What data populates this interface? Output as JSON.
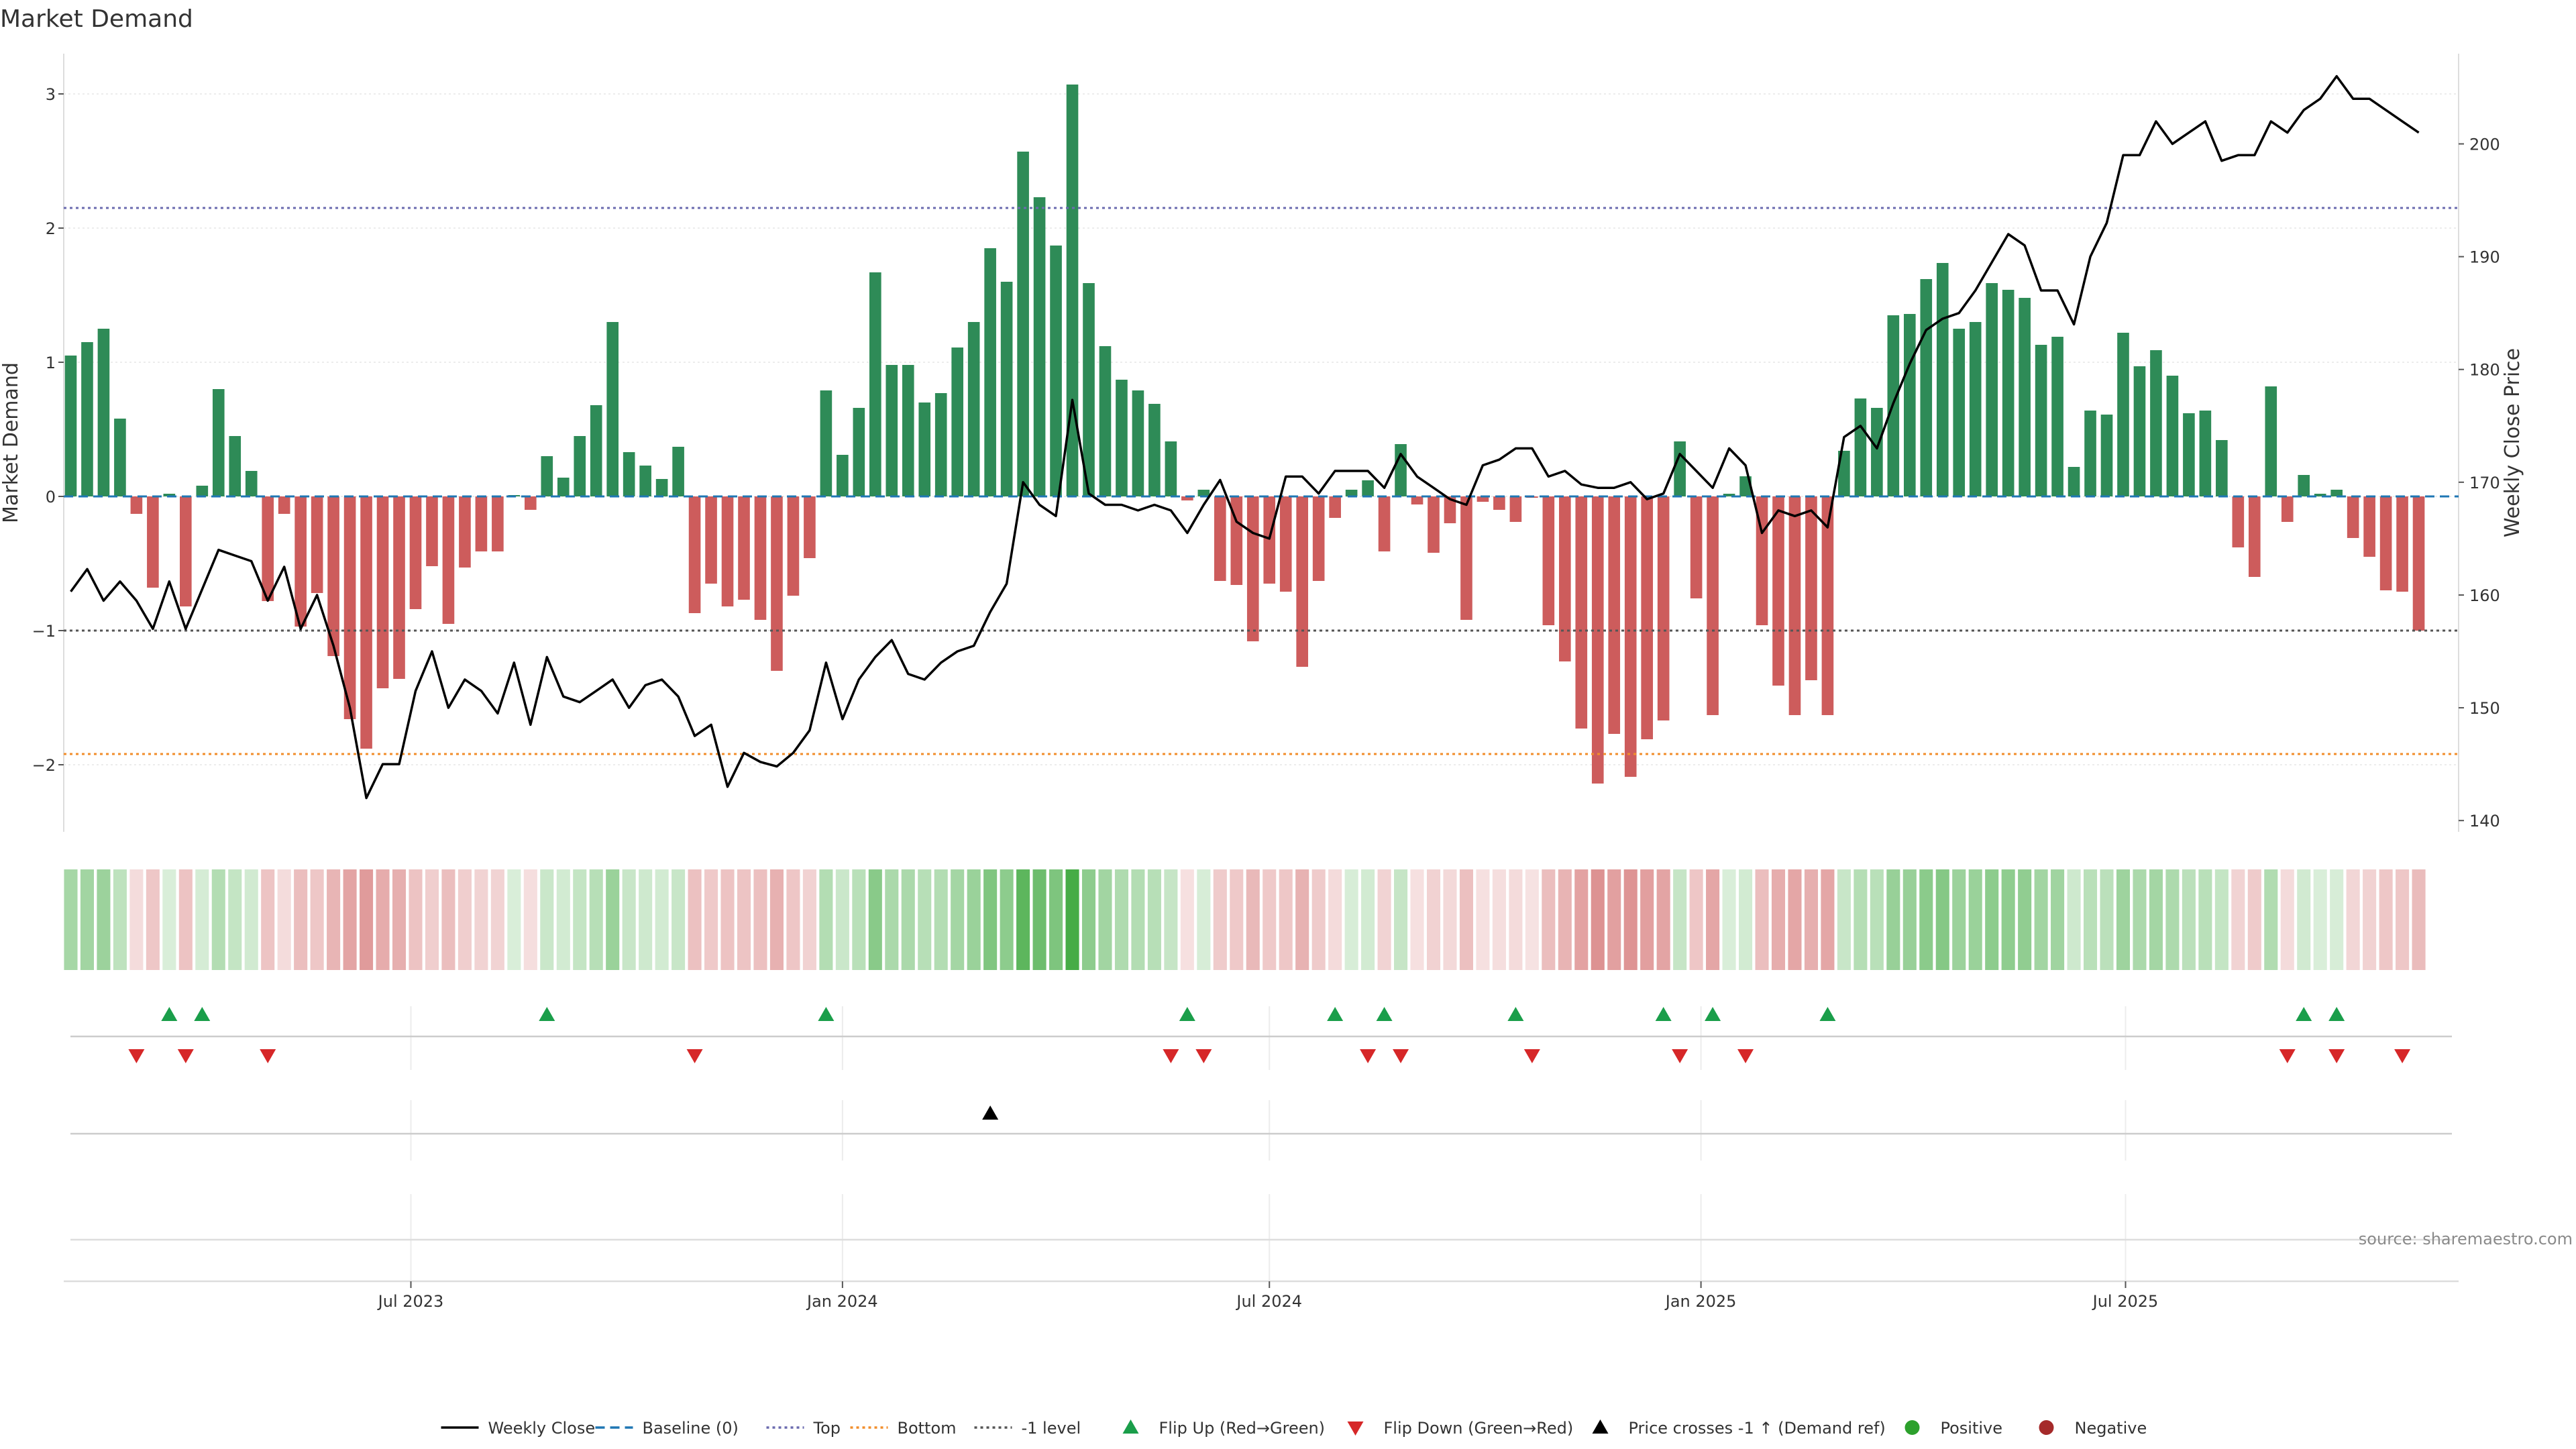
{
  "chart_data": {
    "type": "bar",
    "title": "Market Demand",
    "ylabel": "Market Demand",
    "y2label": "Weekly Close Price",
    "ylim": [
      -2.5,
      3.3
    ],
    "y2lim": [
      139,
      208
    ],
    "yticks": [
      -2,
      -1,
      0,
      1,
      2,
      3
    ],
    "yticklabels": [
      "−2",
      "−1",
      "0",
      "1",
      "2",
      "3"
    ],
    "y2ticks": [
      140,
      150,
      160,
      170,
      180,
      190,
      200
    ],
    "yticks_grid": true,
    "levels": {
      "top": 2.15,
      "bottom": -1.92,
      "minus_one": -1
    },
    "x_start": "2023-02-06",
    "x_step_days": 7,
    "xlim": [
      "2023-02-03",
      "2025-11-20"
    ],
    "xticks": [
      {
        "date": "2023-07-01",
        "label": "Jul 2023"
      },
      {
        "date": "2024-01-01",
        "label": "Jan 2024"
      },
      {
        "date": "2024-07-01",
        "label": "Jul 2024"
      },
      {
        "date": "2025-01-01",
        "label": "Jan 2025"
      },
      {
        "date": "2025-07-01",
        "label": "Jul 2025"
      }
    ],
    "colors": {
      "positive": "#2e8b57",
      "negative": "#cd5c5c",
      "price": "#000000",
      "top": "#6b6baf",
      "bottom": "#f28e2b",
      "minus_one": "#555555",
      "baseline": "#1f77b4",
      "flip_up": "#1a9e4a",
      "flip_down": "#d62728",
      "cross": "#000000",
      "pos_dot": "#2ca02c",
      "neg_dot": "#a52a2a"
    },
    "series": [
      {
        "name": "Market Demand",
        "values": [
          1.05,
          1.15,
          1.25,
          0.58,
          -0.13,
          -0.68,
          0.02,
          -0.82,
          0.08,
          0.8,
          0.45,
          0.19,
          -0.78,
          -0.13,
          -0.97,
          -0.72,
          -1.19,
          -1.66,
          -1.88,
          -1.43,
          -1.36,
          -0.84,
          -0.52,
          -0.95,
          -0.53,
          -0.41,
          -0.41,
          0.01,
          -0.1,
          0.3,
          0.14,
          0.45,
          0.68,
          1.3,
          0.33,
          0.23,
          0.13,
          0.37,
          -0.87,
          -0.65,
          -0.82,
          -0.77,
          -0.92,
          -1.3,
          -0.74,
          -0.46,
          0.79,
          0.31,
          0.66,
          1.67,
          0.98,
          0.98,
          0.7,
          0.77,
          1.11,
          1.3,
          1.85,
          1.6,
          2.57,
          2.23,
          1.87,
          3.07,
          1.59,
          1.12,
          0.87,
          0.79,
          0.69,
          0.41,
          -0.03,
          0.05,
          -0.63,
          -0.66,
          -1.08,
          -0.65,
          -0.71,
          -1.27,
          -0.63,
          -0.16,
          0.05,
          0.12,
          -0.41,
          0.39,
          -0.06,
          -0.42,
          -0.2,
          -0.92,
          -0.04,
          -0.1,
          -0.19,
          -0.01,
          -0.96,
          -1.23,
          -1.73,
          -2.14,
          -1.77,
          -2.09,
          -1.81,
          -1.67,
          0.41,
          -0.76,
          -1.63,
          0.02,
          0.15,
          -0.96,
          -1.41,
          -1.63,
          -1.37,
          -1.63,
          0.34,
          0.73,
          0.66,
          1.35,
          1.36,
          1.62,
          1.74,
          1.25,
          1.3,
          1.59,
          1.54,
          1.48,
          1.13,
          1.19,
          0.22,
          0.64,
          0.61,
          1.22,
          0.97,
          1.09,
          0.9,
          0.62,
          0.64,
          0.42,
          -0.38,
          -0.6,
          0.82,
          -0.19,
          0.16,
          0.02,
          0.05,
          -0.31,
          -0.45,
          -0.7,
          -0.71,
          -1.0
        ]
      },
      {
        "name": "Weekly Close",
        "values": [
          160.3,
          162.3,
          159.5,
          161.2,
          159.5,
          157.0,
          161.2,
          157.0,
          160.5,
          164.0,
          163.5,
          163.0,
          159.5,
          162.5,
          157.0,
          160.0,
          155.5,
          150.0,
          142.0,
          145.0,
          145.0,
          151.5,
          155.0,
          150.0,
          152.5,
          151.5,
          149.5,
          154.0,
          148.5,
          154.5,
          151.0,
          150.5,
          151.5,
          152.5,
          150.0,
          152.0,
          152.5,
          151.0,
          147.5,
          148.5,
          143.0,
          146.0,
          145.2,
          144.8,
          146.0,
          148.0,
          154.0,
          149.0,
          152.5,
          154.5,
          156.0,
          153.0,
          152.5,
          154.0,
          155.0,
          155.5,
          158.5,
          161.0,
          170.0,
          168.0,
          167.0,
          177.3,
          169.0,
          168.0,
          168.0,
          167.5,
          168.0,
          167.5,
          165.5,
          168.0,
          170.2,
          166.5,
          165.5,
          165.0,
          170.5,
          170.5,
          169.0,
          171.0,
          171.0,
          171.0,
          169.5,
          172.5,
          170.5,
          169.5,
          168.5,
          168.0,
          171.5,
          172.0,
          173.0,
          173.0,
          170.5,
          171.0,
          169.8,
          169.5,
          169.5,
          170.0,
          168.5,
          169.0,
          172.5,
          171.0,
          169.5,
          173.0,
          171.5,
          165.5,
          167.5,
          167.0,
          167.5,
          166.0,
          174.0,
          175.0,
          173.0,
          177.0,
          180.5,
          183.5,
          184.5,
          185.0,
          187.0,
          189.5,
          192.0,
          191.0,
          187.0,
          187.0,
          184.0,
          190.0,
          193.0,
          199.0,
          199.0,
          202.0,
          200.0,
          201.0,
          202.0,
          198.5,
          199.0,
          199.0,
          202.0,
          201.0,
          203.0,
          204.0,
          206.0,
          204.0,
          204.0,
          203.0,
          202.0,
          201.0
        ]
      }
    ],
    "heat_strip": "green/red intensity by Market Demand",
    "flip_up": [
      "2023-03-20",
      "2023-04-03",
      "2023-08-28",
      "2023-12-25",
      "2024-05-27",
      "2024-07-29",
      "2024-08-19",
      "2024-10-14",
      "2024-12-16",
      "2025-01-06",
      "2025-02-24",
      "2025-09-15",
      "2025-09-29"
    ],
    "flip_down": [
      "2023-03-06",
      "2023-03-27",
      "2023-05-01",
      "2023-10-30",
      "2024-05-20",
      "2024-06-03",
      "2024-08-12",
      "2024-08-26",
      "2024-10-21",
      "2024-12-23",
      "2025-01-20",
      "2025-09-08",
      "2025-09-29",
      "2025-10-27"
    ],
    "price_cross_up": [
      "2024-03-04"
    ],
    "legend": [
      {
        "label": "Weekly Close",
        "kind": "line",
        "color": "#000000",
        "dash": ""
      },
      {
        "label": "Baseline (0)",
        "kind": "line",
        "color": "#1f77b4",
        "dash": "14,8"
      },
      {
        "label": "Top",
        "kind": "line",
        "color": "#6b6baf",
        "dash": "4,5"
      },
      {
        "label": "Bottom",
        "kind": "line",
        "color": "#f28e2b",
        "dash": "4,5"
      },
      {
        "label": "-1 level",
        "kind": "line",
        "color": "#555555",
        "dash": "4,5"
      },
      {
        "label": "Flip Up (Red→Green)",
        "kind": "tri-up",
        "color": "#1a9e4a"
      },
      {
        "label": "Flip Down (Green→Red)",
        "kind": "tri-down",
        "color": "#d62728"
      },
      {
        "label": "Price crosses -1 ↑ (Demand ref)",
        "kind": "tri-up",
        "color": "#000000"
      },
      {
        "label": "Positive",
        "kind": "dot",
        "color": "#2ca02c"
      },
      {
        "label": "Negative",
        "kind": "dot",
        "color": "#a52a2a"
      }
    ],
    "legend_placement": "bottom-center",
    "source": "source: sharemaestro.com"
  }
}
